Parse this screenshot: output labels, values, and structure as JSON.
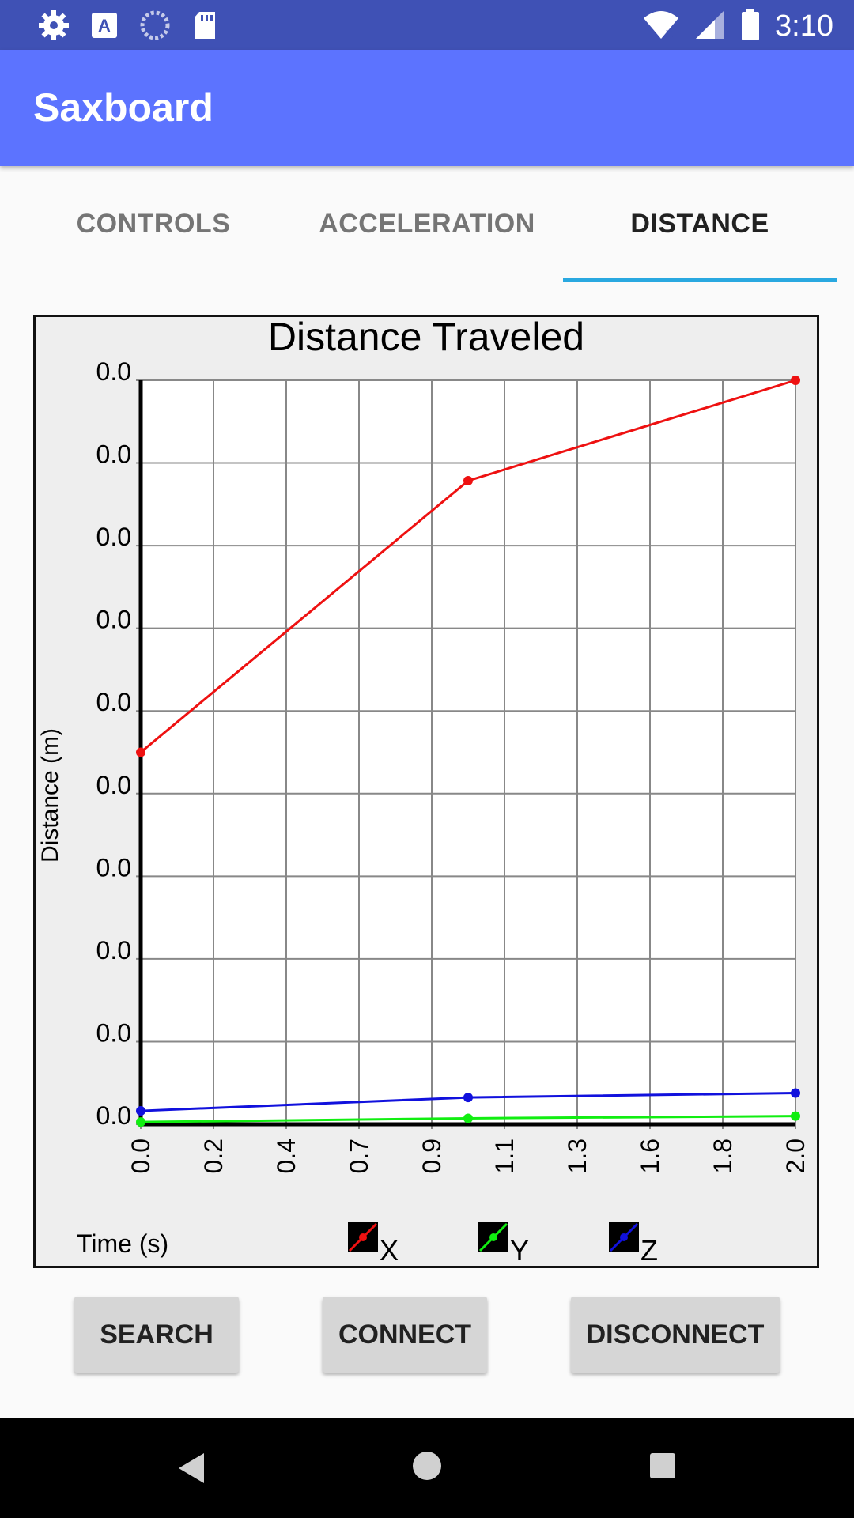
{
  "status_bar": {
    "time": "3:10",
    "icons": [
      "settings-icon",
      "text-a-icon",
      "sync-circle-icon",
      "sd-card-icon",
      "wifi-icon",
      "signal-icon",
      "battery-icon"
    ]
  },
  "app_bar": {
    "title": "Saxboard"
  },
  "tabs": [
    {
      "label": "CONTROLS",
      "active": false
    },
    {
      "label": "ACCELERATION",
      "active": false
    },
    {
      "label": "DISTANCE",
      "active": true
    }
  ],
  "chart_data": {
    "type": "line",
    "title": "Distance Traveled",
    "xlabel": "Time (s)",
    "ylabel": "Distance (m)",
    "x_tick_labels": [
      "0.0",
      "0.2",
      "0.4",
      "0.7",
      "0.9",
      "1.1",
      "1.3",
      "1.6",
      "1.8",
      "2.0"
    ],
    "y_tick_labels": [
      "0.0",
      "0.0",
      "0.0",
      "0.0",
      "0.0",
      "0.0",
      "0.0",
      "0.0",
      "0.0",
      "0.0"
    ],
    "xlim": [
      0.0,
      2.0
    ],
    "ylim": [
      0.0,
      1.0
    ],
    "grid": true,
    "legend_position": "bottom",
    "series": [
      {
        "name": "X",
        "color": "#ee1111",
        "x": [
          0.0,
          1.0,
          2.0
        ],
        "y": [
          0.5,
          0.865,
          1.0
        ]
      },
      {
        "name": "Y",
        "color": "#11ee11",
        "x": [
          0.0,
          1.0,
          2.0
        ],
        "y": [
          0.003,
          0.008,
          0.011
        ]
      },
      {
        "name": "Z",
        "color": "#1111dd",
        "x": [
          0.0,
          1.0,
          2.0
        ],
        "y": [
          0.018,
          0.036,
          0.042
        ]
      }
    ]
  },
  "buttons": {
    "search": "SEARCH",
    "connect": "CONNECT",
    "disconnect": "DISCONNECT"
  },
  "nav_bar": {
    "icons": [
      "back-icon",
      "home-icon",
      "recents-icon"
    ]
  }
}
